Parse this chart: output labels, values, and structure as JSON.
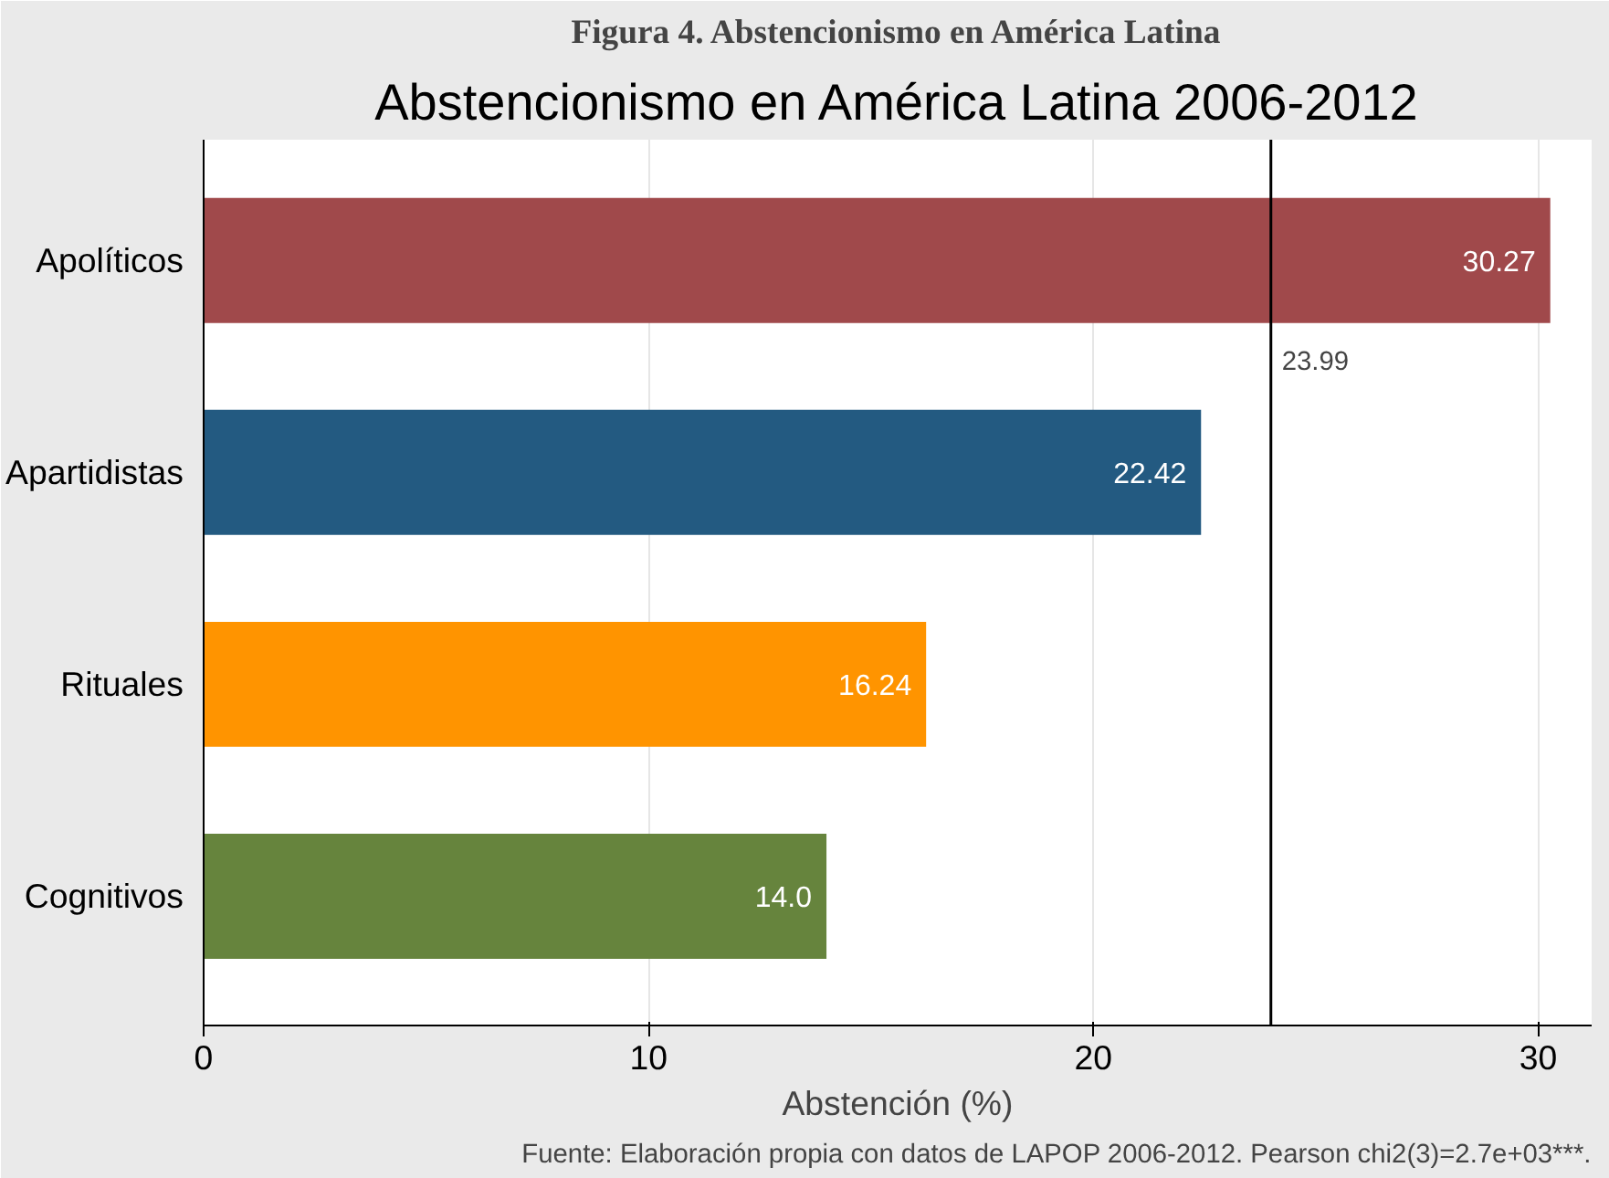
{
  "chart_data": {
    "type": "bar",
    "orientation": "horizontal",
    "title": "Abstencionismo en América Latina 2006-2012",
    "xlabel": "Abstención (%)",
    "categories": [
      "Apolíticos",
      "Apartidistas",
      "Rituales",
      "Cognitivos"
    ],
    "values": [
      30.27,
      22.42,
      16.24,
      14.0
    ],
    "colors": [
      "#a0494b",
      "#235a81",
      "#ff9400",
      "#66843d"
    ],
    "value_labels": [
      "30.27",
      "22.42",
      "16.24",
      "14.0"
    ],
    "xlim": [
      0,
      31.2
    ],
    "xticks": [
      0,
      10,
      20,
      30
    ],
    "grid": "x",
    "ref_lines": [
      {
        "axis": "x",
        "value": 23.99,
        "label": "23.99",
        "color": "#000000",
        "line_style": "solid"
      }
    ],
    "annotations": [
      "Figura 4. Abstencionismo en América Latina",
      "Fuente: Elaboración propia con datos de LAPOP 2006-2012. Pearson chi2(3)=2.7e+03***."
    ]
  }
}
